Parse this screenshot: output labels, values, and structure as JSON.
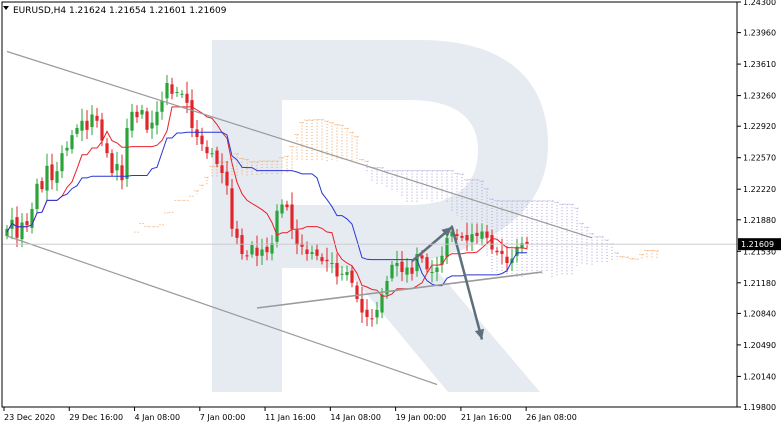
{
  "header": {
    "symbol_line": "EURUSD,H4  1.21624 1.21654 1.21601 1.21609"
  },
  "colors": {
    "candle_up": "#2aa43a",
    "candle_down": "#e0262b",
    "tenkan": "#e8202a",
    "kijun": "#2a35d6",
    "cloud_bull": "#f2a05a",
    "cloud_bear": "#a8a0d6",
    "trendline": "#9a9a9a",
    "arrow": "#5e6f7c",
    "price_label_bg": "#000000",
    "price_label_text": "#ffffff",
    "watermark": "#e6ebf2"
  },
  "chart_data": {
    "type": "candlestick",
    "symbol": "EURUSD",
    "timeframe": "H4",
    "ohlc_header": {
      "open": 1.21624,
      "high": 1.21654,
      "low": 1.21601,
      "close": 1.21609
    },
    "current_price": 1.21609,
    "current_price_label": "1.21609",
    "ylim": [
      1.198,
      1.243
    ],
    "y_ticks": [
      "1.24300",
      "1.23960",
      "1.23610",
      "1.23260",
      "1.22920",
      "1.22570",
      "1.22220",
      "1.21880",
      "1.21530",
      "1.21180",
      "1.20840",
      "1.20490",
      "1.20140",
      "1.19800"
    ],
    "x_ticks": [
      "23 Dec 2020",
      "29 Dec 16:00",
      "4 Jan 08:00",
      "7 Jan 00:00",
      "11 Jan 16:00",
      "14 Jan 08:00",
      "19 Jan 00:00",
      "21 Jan 16:00",
      "26 Jan 08:00"
    ],
    "closes": [
      1.2178,
      1.2188,
      1.2168,
      1.2185,
      1.2182,
      1.22,
      1.2228,
      1.2222,
      1.2248,
      1.2232,
      1.2242,
      1.2262,
      1.2268,
      1.2282,
      1.229,
      1.2298,
      1.2288,
      1.2305,
      1.2298,
      1.2276,
      1.2262,
      1.224,
      1.225,
      1.2232,
      1.229,
      1.2308,
      1.2302,
      1.231,
      1.2288,
      1.2296,
      1.2308,
      1.232,
      1.234,
      1.2328,
      1.233,
      1.2328,
      1.2318,
      1.229,
      1.228,
      1.2272,
      1.2262,
      1.2262,
      1.225,
      1.224,
      1.2226,
      1.2178,
      1.2168,
      1.215,
      1.2148,
      1.216,
      1.2148,
      1.2155,
      1.2152,
      1.2162,
      1.2198,
      1.2205,
      1.2202,
      1.2178,
      1.216,
      1.2158,
      1.215,
      1.2152,
      1.2148,
      1.2142,
      1.2142,
      1.214,
      1.2125,
      1.2128,
      1.213,
      1.2118,
      1.21,
      1.2085,
      1.208,
      1.2078,
      1.2088,
      1.2105,
      1.212,
      1.2138,
      1.214,
      1.213,
      1.2135,
      1.2128,
      1.215,
      1.2145,
      1.2133,
      1.213,
      1.2135,
      1.2148,
      1.2168,
      1.2175,
      1.217,
      1.2168,
      1.2165,
      1.2172,
      1.217,
      1.2175,
      1.2168,
      1.2155,
      1.2152,
      1.215,
      1.214,
      1.2145,
      1.2158,
      1.2162,
      1.2161
    ],
    "ichimoku": {
      "tenkan_sen": "red line",
      "kijun_sen": "blue line",
      "cloud": "dotted Kumo (orange bullish / purple bearish)"
    },
    "annotations": [
      {
        "kind": "descending channel",
        "upper": [
          [
            0,
            1.2375
          ],
          [
            117,
            1.2168
          ]
        ],
        "lower": [
          [
            0,
            1.217
          ],
          [
            86,
            1.2005
          ]
        ]
      },
      {
        "kind": "rising support line",
        "points": [
          [
            50,
            1.209
          ],
          [
            107,
            1.213
          ]
        ]
      },
      {
        "kind": "forecast arrow",
        "points": [
          [
            81,
            1.2142
          ],
          [
            89,
            1.218
          ],
          [
            95,
            1.2055
          ]
        ]
      }
    ],
    "watermark": "R"
  }
}
